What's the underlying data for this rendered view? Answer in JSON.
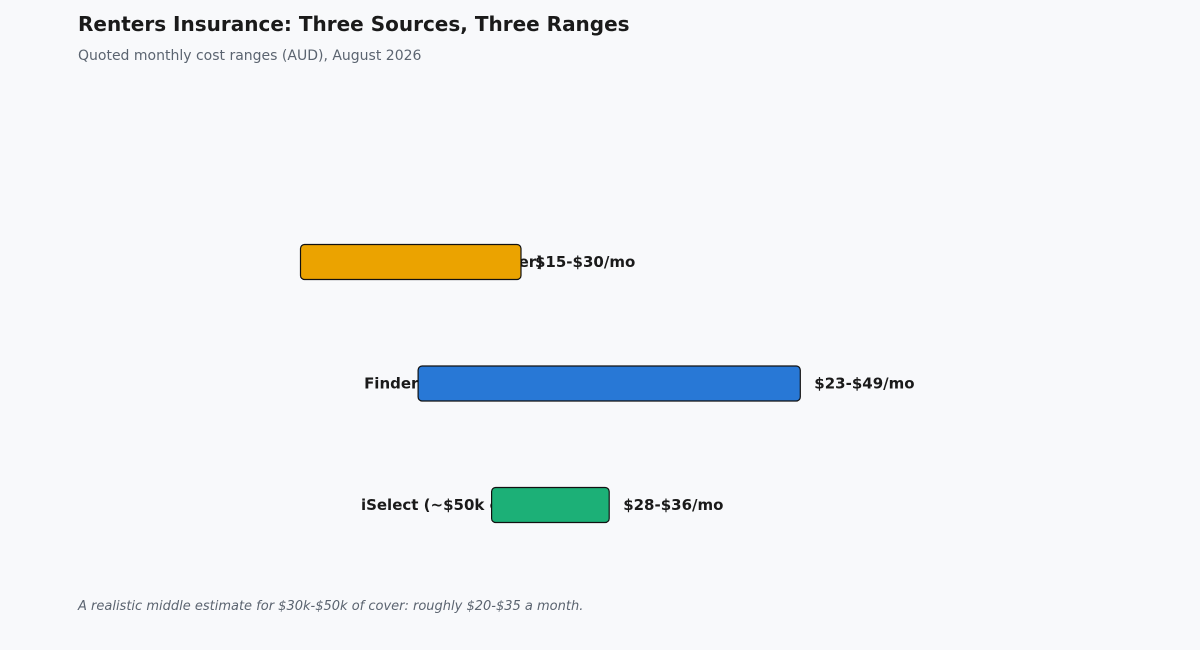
{
  "header": {
    "title": "Renters Insurance: Three Sources, Three Ranges",
    "subtitle": "Quoted monthly cost ranges (AUD), August 2026"
  },
  "footnote": "A realistic middle estimate for $30k-$50k of cover: roughly $20-$35 a month.",
  "chart_data": {
    "type": "bar",
    "orientation": "horizontal-range",
    "title": "Renters Insurance: Three Sources, Three Ranges",
    "subtitle": "Quoted monthly cost ranges (AUD), August 2026",
    "xlabel": "",
    "ylabel": "",
    "xlim": [
      0,
      49
    ],
    "grid": false,
    "legend": "none",
    "categories": [
      "SortedAus (~$30-50k cover)",
      "Finder (~$20k cover)",
      "iSelect (~$50k cover)"
    ],
    "ranges": [
      {
        "low": 15,
        "high": 30,
        "label": "$15-$30/mo",
        "color": "#eba300"
      },
      {
        "low": 23,
        "high": 49,
        "label": "$23-$49/mo",
        "color": "#2878d6"
      },
      {
        "low": 28,
        "high": 36,
        "label": "$28-$36/mo",
        "color": "#1cb077"
      }
    ]
  }
}
